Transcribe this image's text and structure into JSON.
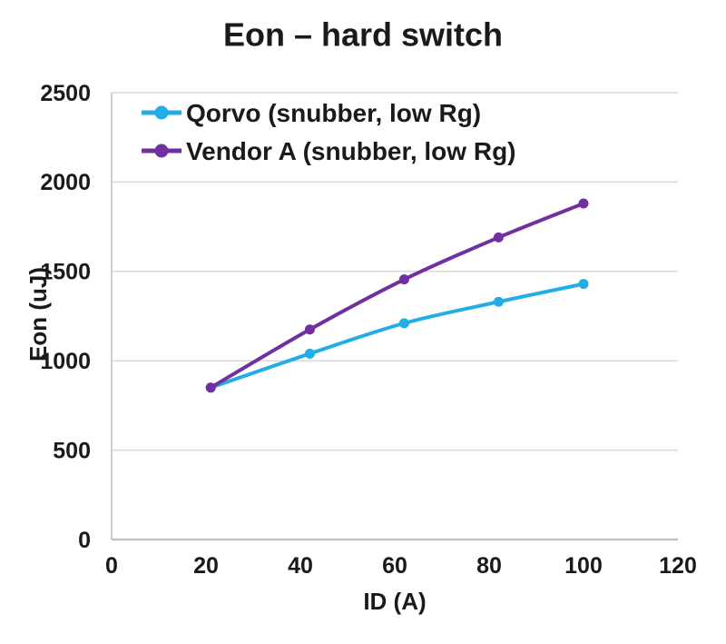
{
  "title": "Eon – hard switch",
  "chart_data": {
    "type": "line",
    "title": "Eon – hard switch",
    "xlabel": "ID (A)",
    "ylabel": "Eon (uJ)",
    "xlim": [
      0,
      120
    ],
    "ylim": [
      0,
      2500
    ],
    "x_ticks": [
      0,
      20,
      40,
      60,
      80,
      100,
      120
    ],
    "y_ticks": [
      0,
      500,
      1000,
      1500,
      2000,
      2500
    ],
    "grid": "horizontal",
    "legend_position": "top-left-inside",
    "x": [
      21,
      42,
      62,
      82,
      100
    ],
    "series": [
      {
        "name": "Qorvo (snubber, low Rg)",
        "color": "#22ade6",
        "values": [
          850,
          1040,
          1210,
          1330,
          1430
        ]
      },
      {
        "name": "Vendor A (snubber, low Rg)",
        "color": "#7030a0",
        "values": [
          850,
          1175,
          1455,
          1690,
          1880
        ]
      }
    ],
    "colors": {
      "qorvo_accent": "#22ade6",
      "vendor_a_accent": "#7030a0",
      "gridline": "#d9d9d9",
      "axis_line": "#c2c2c2",
      "text": "#1a1a1a",
      "background": "#ffffff"
    }
  }
}
